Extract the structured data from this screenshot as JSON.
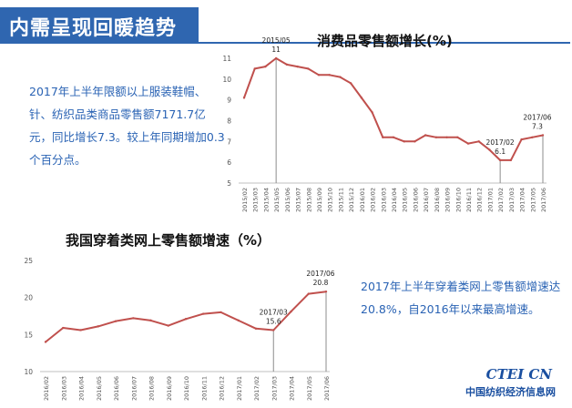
{
  "header": {
    "title": "内需呈现回暖趋势"
  },
  "notes": {
    "note1": "2017年上半年限额以上服装鞋帽、针、纺织品类商品零售额7171.7亿元，同比增长7.3。较上年同期增加0.3个百分点。",
    "note2": "2017年上半年穿着类网上零售额增速达20.8%，自2016年以来最高增速。"
  },
  "logo": {
    "mark": "CTEI CN",
    "text": "中国纺织经济信息网"
  },
  "colors": {
    "line": "#c0504d",
    "accent": "#2f66b0",
    "text_blue": "#2a63b4"
  },
  "chart_data": [
    {
      "type": "line",
      "title": "消费品零售额增长(%)",
      "categories": [
        "2015/02",
        "2015/03",
        "2015/04",
        "2015/05",
        "2015/06",
        "2015/07",
        "2015/08",
        "2015/09",
        "2015/10",
        "2015/11",
        "2015/12",
        "2016/01",
        "2016/02",
        "2016/03",
        "2016/04",
        "2016/05",
        "2016/06",
        "2016/07",
        "2016/08",
        "2016/09",
        "2016/10",
        "2016/11",
        "2016/12",
        "2017/01",
        "2017/02",
        "2017/03",
        "2017/04",
        "2017/05",
        "2017/06"
      ],
      "values": [
        9.1,
        10.5,
        10.6,
        11.0,
        10.7,
        10.6,
        10.5,
        10.2,
        10.2,
        10.1,
        9.8,
        9.1,
        8.4,
        7.2,
        7.2,
        7.0,
        7.0,
        7.3,
        7.2,
        7.2,
        7.2,
        6.9,
        7.0,
        6.6,
        6.1,
        6.1,
        7.1,
        7.2,
        7.3
      ],
      "ylim": [
        5,
        11
      ],
      "yticks": [
        5,
        6,
        7,
        8,
        9,
        10,
        11
      ],
      "annotations": [
        {
          "category": "2015/05",
          "label": "2015/05",
          "value_label": "11"
        },
        {
          "category": "2017/02",
          "label": "2017/02",
          "value_label": "6.1"
        },
        {
          "category": "2017/06",
          "label": "2017/06",
          "value_label": "7.3"
        }
      ]
    },
    {
      "type": "line",
      "title": "我国穿着类网上零售额增速（%）",
      "categories": [
        "2016/02",
        "2016/03",
        "2016/04",
        "2016/05",
        "2016/06",
        "2016/07",
        "2016/08",
        "2016/09",
        "2016/10",
        "2016/11",
        "2016/12",
        "2017/01",
        "2017/02",
        "2017/03",
        "2017/04",
        "2017/05",
        "2017/06"
      ],
      "values": [
        14.0,
        15.9,
        15.6,
        16.1,
        16.8,
        17.2,
        16.9,
        16.2,
        17.1,
        17.8,
        18.0,
        16.9,
        15.8,
        15.6,
        18.1,
        20.5,
        20.8
      ],
      "ylim": [
        10,
        25
      ],
      "yticks": [
        10,
        15,
        20,
        25
      ],
      "annotations": [
        {
          "category": "2017/03",
          "label": "2017/03",
          "value_label": "15.6"
        },
        {
          "category": "2017/06",
          "label": "2017/06",
          "value_label": "20.8"
        }
      ]
    }
  ]
}
